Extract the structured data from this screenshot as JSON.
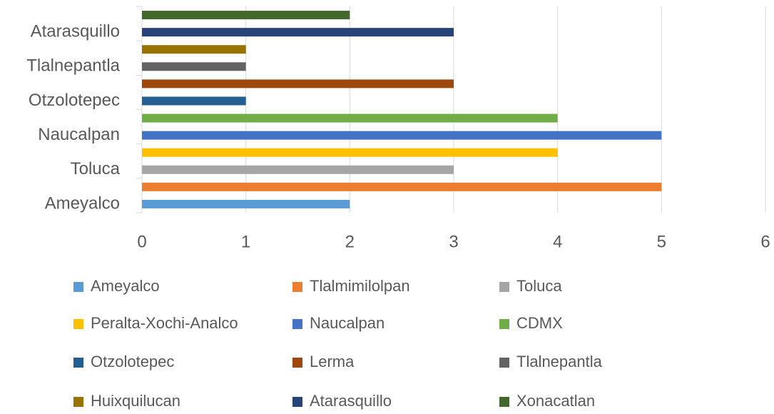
{
  "chart_data": {
    "type": "bar",
    "orientation": "horizontal",
    "categories": [
      "Ameyalco",
      null,
      "Toluca",
      null,
      "Naucalpan",
      null,
      "Otzolotepec",
      null,
      "Tlalnepantla",
      null,
      "Atarasquillo",
      null
    ],
    "series": [
      {
        "name": "Ameyalco",
        "color": "#5B9BD5",
        "values": [
          2,
          null,
          null,
          null,
          null,
          null,
          null,
          null,
          null,
          null,
          null,
          null
        ]
      },
      {
        "name": "Tlalmimilolpan",
        "color": "#ED7D31",
        "values": [
          null,
          5,
          null,
          null,
          null,
          null,
          null,
          null,
          null,
          null,
          null,
          null
        ]
      },
      {
        "name": "Toluca",
        "color": "#A5A5A5",
        "values": [
          null,
          null,
          3,
          null,
          null,
          null,
          null,
          null,
          null,
          null,
          null,
          null
        ]
      },
      {
        "name": "Peralta-Xochi-Analco",
        "color": "#FFC000",
        "values": [
          null,
          null,
          null,
          4,
          null,
          null,
          null,
          null,
          null,
          null,
          null,
          null
        ]
      },
      {
        "name": "Naucalpan",
        "color": "#4472C4",
        "values": [
          null,
          null,
          null,
          null,
          5,
          null,
          null,
          null,
          null,
          null,
          null,
          null
        ]
      },
      {
        "name": "CDMX",
        "color": "#70AD47",
        "values": [
          null,
          null,
          null,
          null,
          null,
          4,
          null,
          null,
          null,
          null,
          null,
          null
        ]
      },
      {
        "name": "Otzolotepec",
        "color": "#255E91",
        "values": [
          null,
          null,
          null,
          null,
          null,
          null,
          1,
          null,
          null,
          null,
          null,
          null
        ]
      },
      {
        "name": "Lerma",
        "color": "#9E480E",
        "values": [
          null,
          null,
          null,
          null,
          null,
          null,
          null,
          3,
          null,
          null,
          null,
          null
        ]
      },
      {
        "name": "Tlalnepantla",
        "color": "#636363",
        "values": [
          null,
          null,
          null,
          null,
          null,
          null,
          null,
          null,
          1,
          null,
          null,
          null
        ]
      },
      {
        "name": "Huixquilucan",
        "color": "#997300",
        "values": [
          null,
          null,
          null,
          null,
          null,
          null,
          null,
          null,
          null,
          1,
          null,
          null
        ]
      },
      {
        "name": "Atarasquillo",
        "color": "#264478",
        "values": [
          null,
          null,
          null,
          null,
          null,
          null,
          null,
          null,
          null,
          null,
          3,
          null
        ]
      },
      {
        "name": "Xonacatlan",
        "color": "#43682B",
        "values": [
          null,
          null,
          null,
          null,
          null,
          null,
          null,
          null,
          null,
          null,
          null,
          2
        ]
      }
    ],
    "xlim": [
      0,
      6
    ],
    "xticks": [
      0,
      1,
      2,
      3,
      4,
      5,
      6
    ],
    "grid": true,
    "legend": "bottom"
  }
}
